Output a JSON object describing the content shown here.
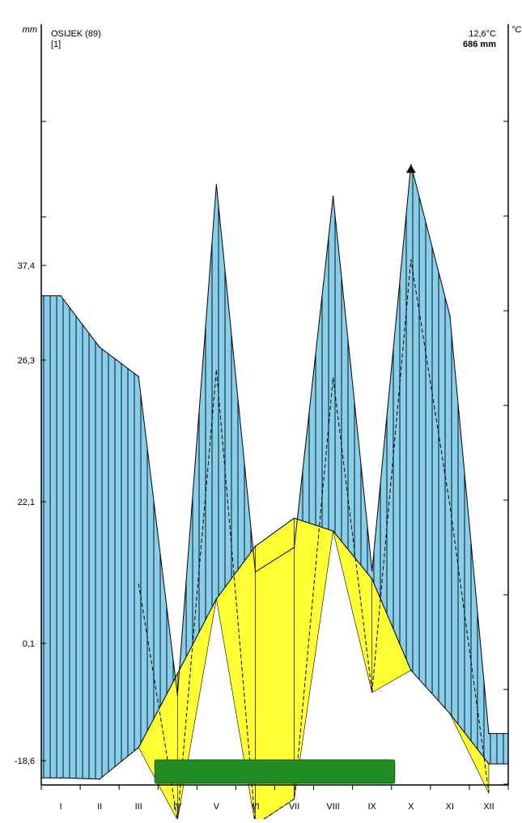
{
  "header": {
    "station": "OSIJEK (89)",
    "ref": "[1]",
    "mean_temp": "12,6°C",
    "total_precip": "686 mm",
    "left_unit": "mm",
    "right_unit": "°C"
  },
  "chart_data": {
    "type": "area",
    "title": "OSIJEK (89)",
    "subtitle": "[1]",
    "annotations": [
      "12,6°C",
      "686 mm"
    ],
    "xlabel": "",
    "ylabel": "mm",
    "y2label": "°C",
    "categories": [
      "I",
      "II",
      "III",
      "IV",
      "V",
      "VI",
      "VII",
      "VIII",
      "IX",
      "X",
      "XI",
      "XII"
    ],
    "y_tick_labels": [
      "-18,6",
      "0,1",
      "22,1",
      "26,3",
      "37,4"
    ],
    "series": [
      {
        "values": [
          -4.4,
          -4.5,
          -1.8,
          4.5,
          10.9,
          15.4,
          17.8,
          16.7,
          12.6,
          4.8,
          1.1,
          -3.2
        ]
      },
      {
        "values": [
          36.8,
          32.4,
          29.9,
          2.7,
          46.3,
          13.2,
          15.3,
          45.3,
          13.3,
          48.0,
          35.1,
          -0.6
        ]
      },
      {
        "values": [
          35.4,
          30.4,
          25.3,
          5.9,
          44.1,
          16.3,
          18.2,
          44.4,
          14.5,
          47.3,
          33.4,
          -1.0
        ]
      },
      {
        "values": [
          null,
          null,
          12.2,
          -8.0,
          30.5,
          -8.4,
          -6.2,
          29.8,
          2.9,
          39.9,
          18.9,
          -5.7
        ]
      }
    ],
    "ylim": [
      -5.0,
      60.0
    ],
    "vegetation_period": [
      "IV",
      "X"
    ],
    "grid": false,
    "legend": "none"
  },
  "colors": {
    "humid": "#87ceeb",
    "wet_peak": "#000000",
    "arid": "#ff0000",
    "semi_arid": "#ffff33",
    "vegetation_bar": "#228b22"
  }
}
